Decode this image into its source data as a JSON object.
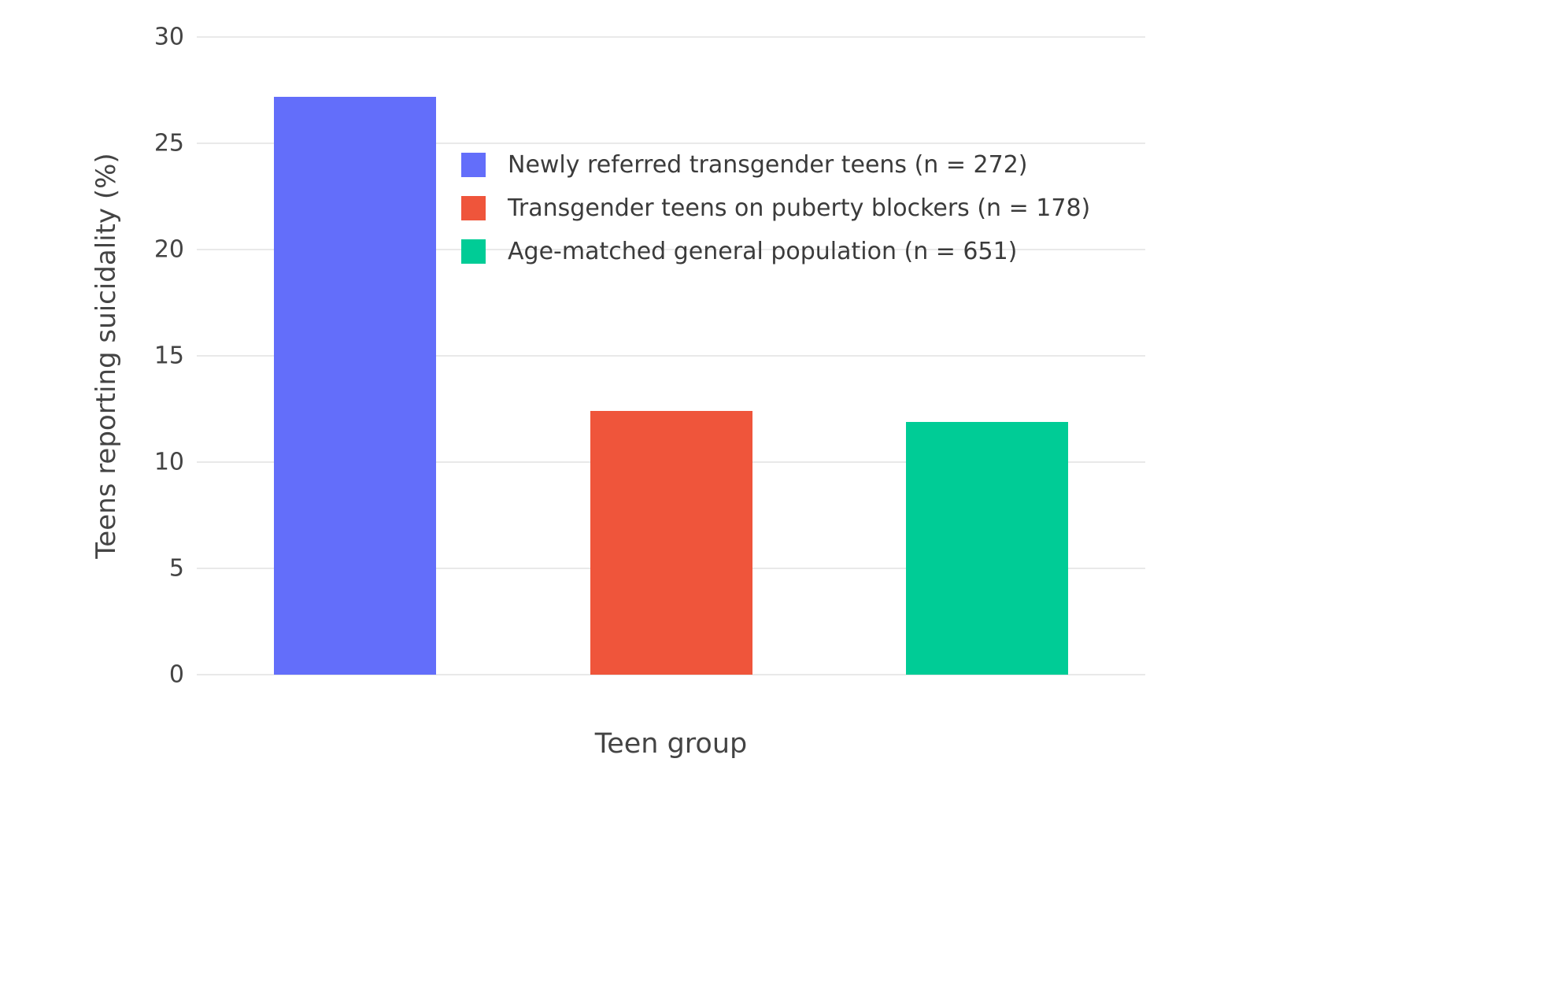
{
  "chart_data": {
    "type": "bar",
    "categories": [
      "Newly referred transgender teens (n = 272)",
      "Transgender teens on puberty blockers (n = 178)",
      "Age-matched general population (n = 651)"
    ],
    "values": [
      27.2,
      12.4,
      11.9
    ],
    "colors": [
      "#636EFA",
      "#EF553B",
      "#00CC96"
    ],
    "title": "",
    "xlabel": "Teen group",
    "ylabel": "Teens reporting suicidality (%)",
    "ylim": [
      0,
      30
    ],
    "yticks": [
      0,
      5,
      10,
      15,
      20,
      25,
      30
    ],
    "grid": true,
    "grid_color": "#e9e9e9",
    "legend_position": "inside-top-center",
    "background_color": "#ffffff",
    "legend": [
      {
        "label": "Newly referred transgender teens (n = 272)",
        "color": "#636EFA"
      },
      {
        "label": "Transgender teens on puberty blockers (n = 178)",
        "color": "#EF553B"
      },
      {
        "label": "Age-matched general population (n = 651)",
        "color": "#00CC96"
      }
    ]
  }
}
